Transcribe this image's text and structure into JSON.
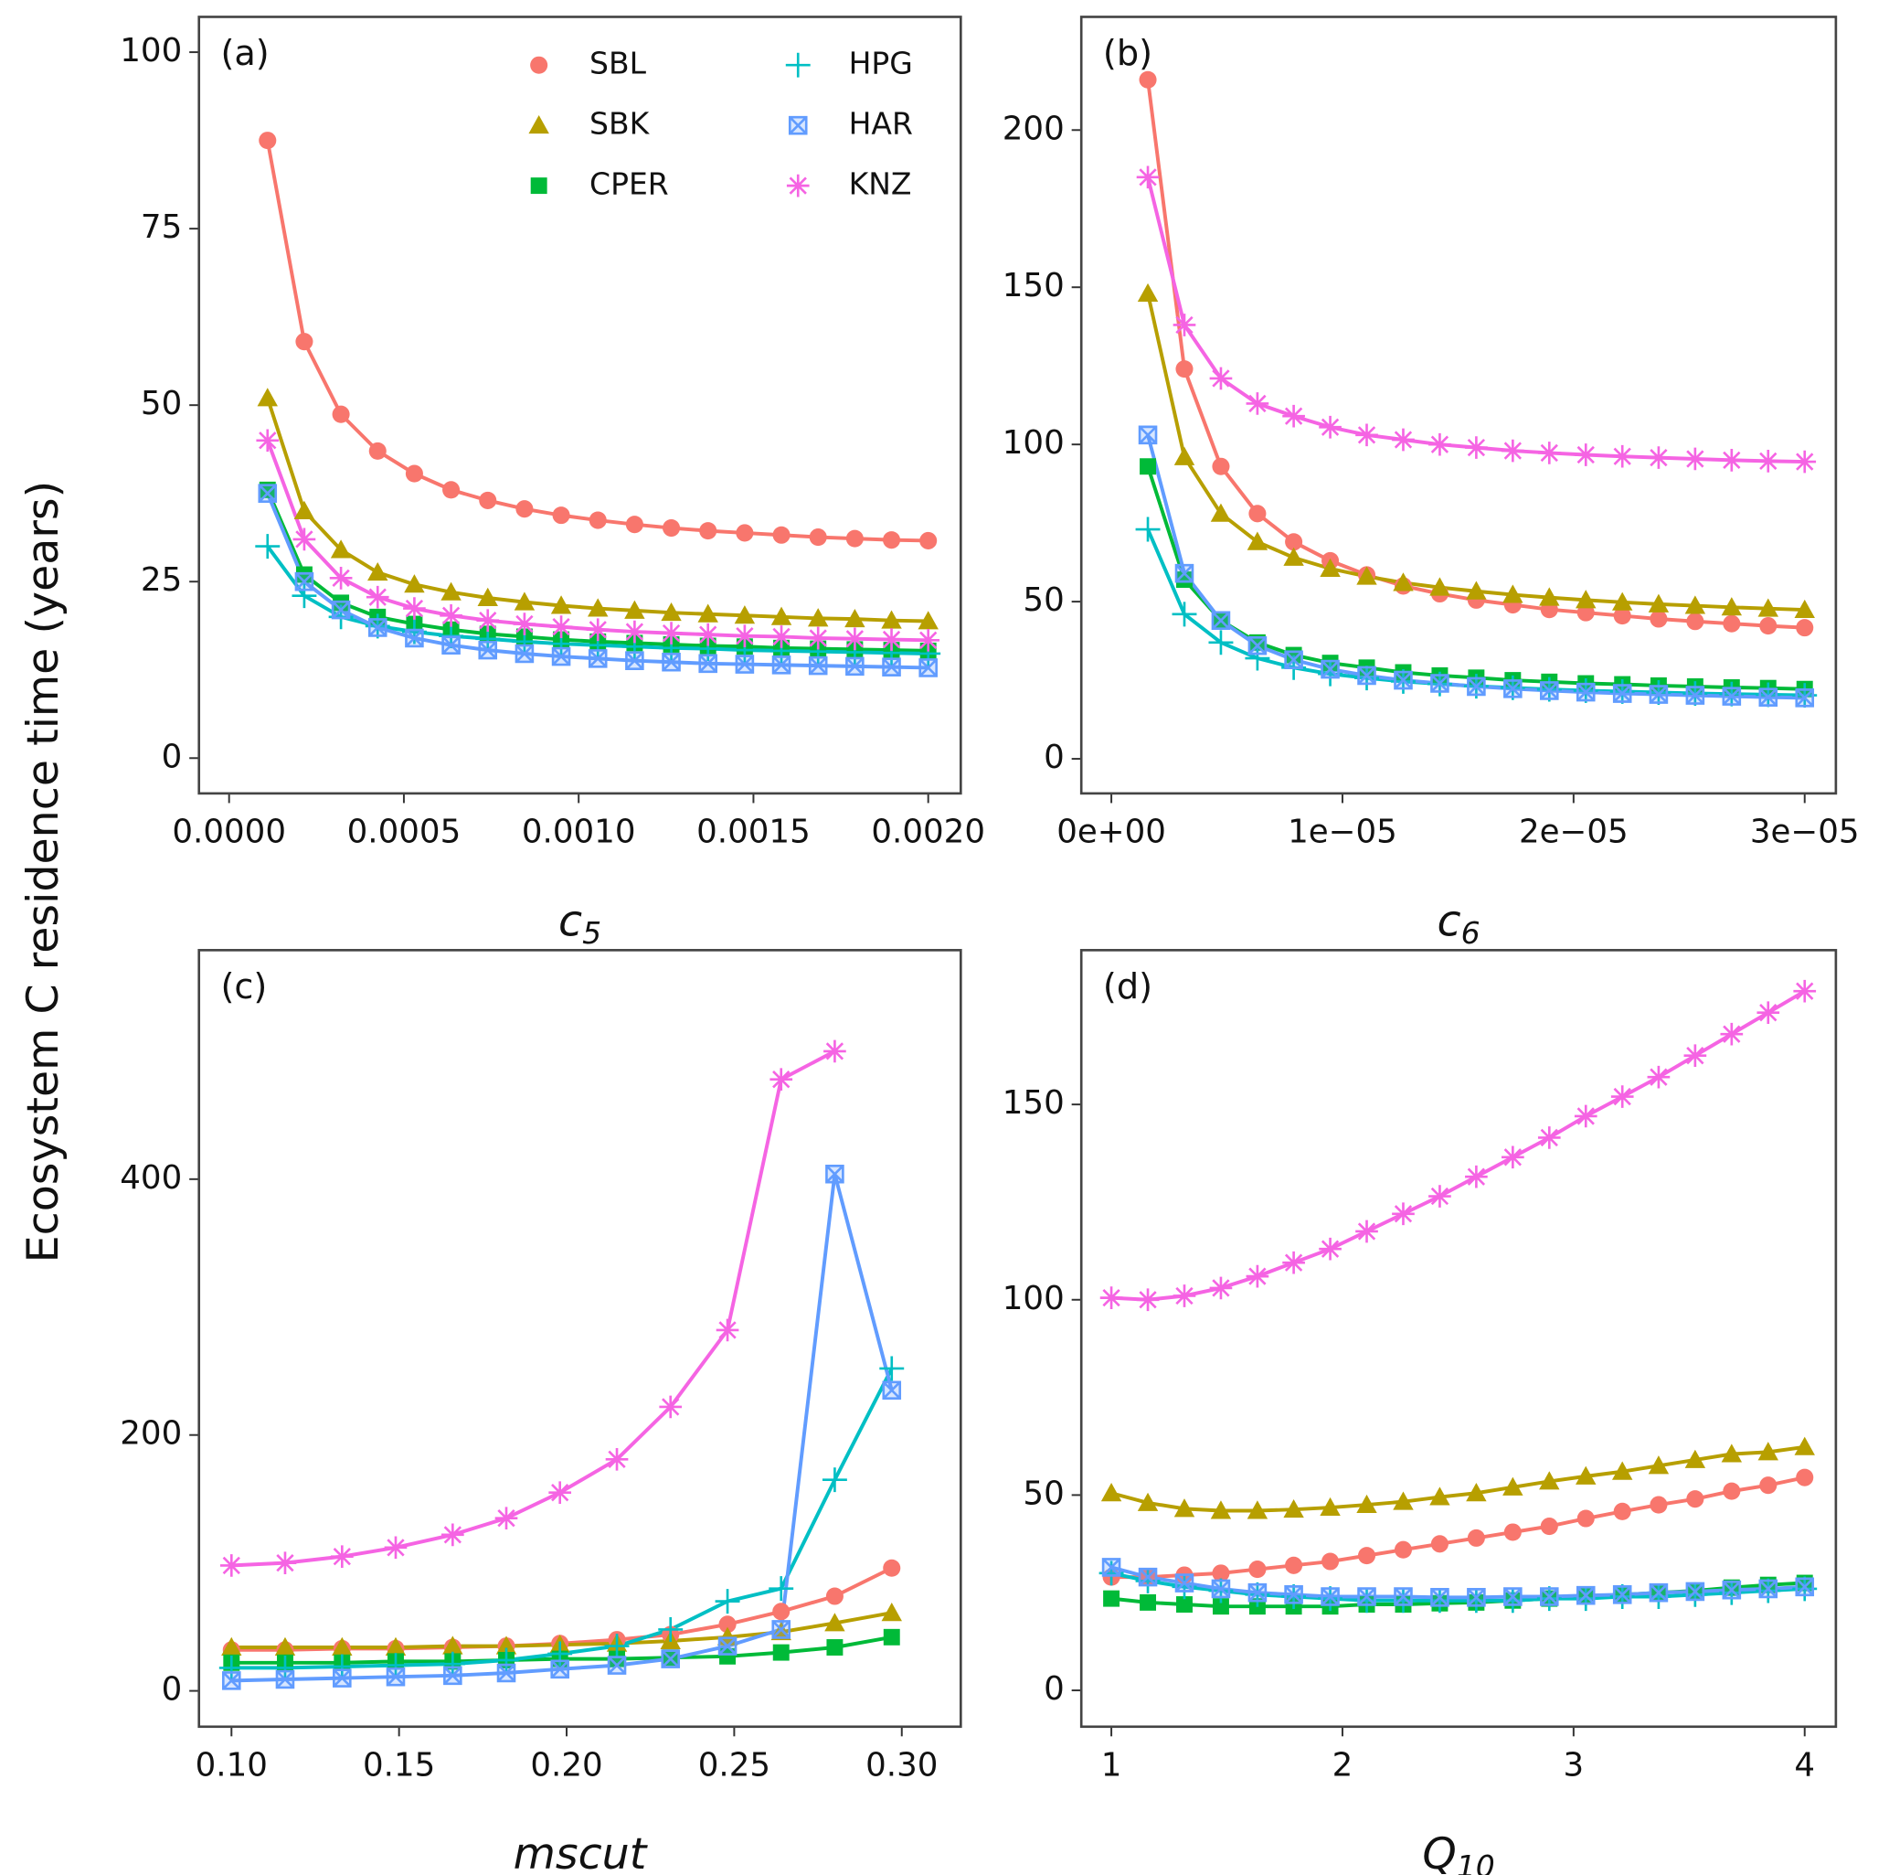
{
  "ylabel": "Ecosystem C residence time (years)",
  "chart_data": [
    {
      "type": "line",
      "title": "(a)",
      "xlabel": {
        "text": "c",
        "sub": "5"
      },
      "legend": "upper right",
      "xlim": [
        -8.62e-05,
        0.0020931
      ],
      "ylim": [
        -5,
        105
      ],
      "xticks": [
        {
          "value": 0,
          "label": "0.0000"
        },
        {
          "value": 0.0005,
          "label": "0.0005"
        },
        {
          "value": 0.001,
          "label": "0.0010"
        },
        {
          "value": 0.0015,
          "label": "0.0015"
        },
        {
          "value": 0.002,
          "label": "0.0020"
        }
      ],
      "yticks": [
        0,
        25,
        50,
        75,
        100
      ],
      "x": [
        0.00011,
        0.000215,
        0.00032,
        0.000425,
        0.00053,
        0.000635,
        0.00074,
        0.000845,
        0.00095,
        0.001055,
        0.00116,
        0.001265,
        0.00137,
        0.001475,
        0.00158,
        0.001685,
        0.00179,
        0.001895,
        0.002
      ],
      "series": [
        {
          "name": "SBL",
          "color": "#f8766d",
          "marker": "circle",
          "values": [
            87.5,
            59,
            48.7,
            43.5,
            40.3,
            38,
            36.5,
            35.3,
            34.4,
            33.7,
            33.1,
            32.6,
            32.2,
            31.9,
            31.6,
            31.3,
            31.1,
            30.9,
            30.8
          ]
        },
        {
          "name": "SBK",
          "color": "#b79f00",
          "marker": "triangle",
          "values": [
            51,
            35,
            29.5,
            26.3,
            24.6,
            23.5,
            22.7,
            22.1,
            21.6,
            21.2,
            20.9,
            20.6,
            20.4,
            20.2,
            20.0,
            19.8,
            19.7,
            19.5,
            19.4
          ]
        },
        {
          "name": "CPER",
          "color": "#00ba38",
          "marker": "square",
          "values": [
            38,
            26,
            22,
            20,
            19,
            18.2,
            17.6,
            17.2,
            16.8,
            16.5,
            16.3,
            16.1,
            15.9,
            15.8,
            15.6,
            15.5,
            15.4,
            15.3,
            15.2
          ]
        },
        {
          "name": "HPG",
          "color": "#00bfc4",
          "marker": "plus",
          "values": [
            30,
            23,
            20,
            18.7,
            17.9,
            17.3,
            16.9,
            16.5,
            16.2,
            16.0,
            15.8,
            15.6,
            15.5,
            15.3,
            15.2,
            15.1,
            15.0,
            14.9,
            14.8
          ]
        },
        {
          "name": "HAR",
          "color": "#619cff",
          "marker": "boxx",
          "values": [
            37.5,
            25,
            21,
            18.5,
            17,
            16,
            15.3,
            14.8,
            14.4,
            14.1,
            13.8,
            13.6,
            13.4,
            13.3,
            13.2,
            13.1,
            13.0,
            12.9,
            12.8
          ]
        },
        {
          "name": "KNZ",
          "color": "#f564e3",
          "marker": "star",
          "values": [
            45,
            31,
            25.5,
            22.8,
            21.2,
            20.2,
            19.5,
            19,
            18.6,
            18.2,
            17.9,
            17.7,
            17.5,
            17.3,
            17.2,
            17.0,
            16.9,
            16.8,
            16.7
          ]
        }
      ]
    },
    {
      "type": "line",
      "title": "(b)",
      "xlabel": {
        "text": "c",
        "sub": "6"
      },
      "xlim": [
        -1.3e-06,
        3.135e-05
      ],
      "ylim": [
        -11,
        236
      ],
      "xticks": [
        {
          "value": 0,
          "label": "0e+00"
        },
        {
          "value": 1e-05,
          "label": "1e−05"
        },
        {
          "value": 2e-05,
          "label": "2e−05"
        },
        {
          "value": 3e-05,
          "label": "3e−05"
        }
      ],
      "yticks": [
        0,
        50,
        100,
        150,
        200
      ],
      "x": [
        1.58e-06,
        3.16e-06,
        4.74e-06,
        6.32e-06,
        7.89e-06,
        9.47e-06,
        1.105e-05,
        1.263e-05,
        1.421e-05,
        1.579e-05,
        1.737e-05,
        1.895e-05,
        2.053e-05,
        2.211e-05,
        2.368e-05,
        2.526e-05,
        2.684e-05,
        2.842e-05,
        3e-05
      ],
      "series": [
        {
          "color": "#f8766d",
          "marker": "circle",
          "values": [
            216,
            124,
            93,
            78,
            69,
            63,
            58.5,
            55,
            52.5,
            50.5,
            49,
            47.5,
            46.5,
            45.5,
            44.5,
            43.7,
            43,
            42.3,
            41.7
          ]
        },
        {
          "color": "#b79f00",
          "marker": "triangle",
          "values": [
            148,
            96,
            78,
            69,
            64,
            60.5,
            58,
            56,
            54.5,
            53.3,
            52.2,
            51.3,
            50.5,
            49.8,
            49.2,
            48.7,
            48.2,
            47.8,
            47.4
          ]
        },
        {
          "color": "#00ba38",
          "marker": "square",
          "values": [
            93,
            57,
            44,
            37,
            33,
            30.5,
            29,
            27.5,
            26.5,
            25.8,
            25,
            24.5,
            24,
            23.7,
            23.3,
            23,
            22.7,
            22.5,
            22.2
          ]
        },
        {
          "color": "#00bfc4",
          "marker": "plus",
          "values": [
            73,
            46,
            37,
            32,
            29,
            27,
            25.7,
            24.6,
            23.8,
            23.1,
            22.6,
            22.1,
            21.7,
            21.4,
            21.1,
            20.8,
            20.6,
            20.4,
            20.2
          ]
        },
        {
          "color": "#619cff",
          "marker": "boxx",
          "values": [
            103,
            59,
            44,
            36,
            31.5,
            28.5,
            26.5,
            25,
            24,
            23,
            22.3,
            21.7,
            21.2,
            20.8,
            20.5,
            20.2,
            19.9,
            19.6,
            19.4
          ]
        },
        {
          "color": "#f564e3",
          "marker": "star",
          "values": [
            185,
            138,
            121,
            113,
            109,
            105.5,
            103,
            101.5,
            100,
            99,
            98,
            97.3,
            96.7,
            96.2,
            95.8,
            95.4,
            95,
            94.7,
            94.5
          ]
        }
      ]
    },
    {
      "type": "line",
      "title": "(c)",
      "xlabel": {
        "text": "mscut"
      },
      "xlim": [
        0.0903,
        0.3176
      ],
      "ylim": [
        -28,
        579
      ],
      "xticks": [
        {
          "value": 0.1,
          "label": "0.10"
        },
        {
          "value": 0.15,
          "label": "0.15"
        },
        {
          "value": 0.2,
          "label": "0.20"
        },
        {
          "value": 0.25,
          "label": "0.25"
        },
        {
          "value": 0.3,
          "label": "0.30"
        }
      ],
      "yticks": [
        0,
        200,
        400
      ],
      "x": [
        0.1,
        0.116,
        0.133,
        0.149,
        0.166,
        0.182,
        0.198,
        0.215,
        0.231,
        0.248,
        0.264,
        0.28,
        0.297
      ],
      "series": [
        {
          "color": "#f8766d",
          "marker": "circle",
          "values": [
            32,
            32,
            33,
            33,
            34,
            35,
            37,
            40,
            44,
            52,
            62,
            74,
            96
          ]
        },
        {
          "color": "#b79f00",
          "marker": "triangle",
          "values": [
            34,
            34,
            34,
            34,
            35,
            35,
            36,
            37,
            39,
            42,
            46,
            53,
            61
          ]
        },
        {
          "color": "#00ba38",
          "marker": "square",
          "values": [
            22,
            22,
            22,
            23,
            23,
            24,
            25,
            25,
            26,
            27,
            30,
            34,
            42
          ]
        },
        {
          "color": "#00bfc4",
          "marker": "plus",
          "values": [
            18,
            18,
            19,
            20,
            21,
            24,
            29,
            35,
            48,
            70,
            80,
            165,
            252
          ]
        },
        {
          "color": "#619cff",
          "marker": "boxx",
          "values": [
            8,
            9,
            10,
            11,
            12,
            14,
            17,
            20,
            25,
            35,
            48,
            404,
            235
          ]
        },
        {
          "color": "#f564e3",
          "marker": "star",
          "values": [
            98,
            100,
            105,
            112,
            122,
            135,
            155,
            181,
            222,
            282,
            478,
            500,
            null
          ]
        }
      ]
    },
    {
      "type": "line",
      "title": "(d)",
      "xlabel": {
        "text": "Q",
        "sub": "10"
      },
      "xlim": [
        0.87,
        4.135
      ],
      "ylim": [
        -9.3,
        189.5
      ],
      "xticks": [
        1,
        2,
        3,
        4
      ],
      "yticks": [
        0,
        50,
        100,
        150
      ],
      "x": [
        1,
        1.158,
        1.316,
        1.474,
        1.632,
        1.789,
        1.947,
        2.105,
        2.263,
        2.421,
        2.579,
        2.737,
        2.895,
        3.053,
        3.211,
        3.368,
        3.526,
        3.684,
        3.842,
        4
      ],
      "series": [
        {
          "color": "#f8766d",
          "marker": "circle",
          "values": [
            29,
            29,
            29.5,
            30,
            31,
            32,
            33,
            34.5,
            36,
            37.5,
            39,
            40.5,
            42,
            44,
            45.8,
            47.5,
            49,
            51,
            52.5,
            54.5
          ]
        },
        {
          "color": "#b79f00",
          "marker": "triangle",
          "values": [
            50.5,
            48,
            46.5,
            46,
            46,
            46.3,
            46.8,
            47.5,
            48.3,
            49.5,
            50.5,
            52,
            53.5,
            54.8,
            56,
            57.5,
            59,
            60.5,
            61,
            62.3
          ]
        },
        {
          "color": "#00ba38",
          "marker": "square",
          "values": [
            23.5,
            22.5,
            22,
            21.5,
            21.5,
            21.5,
            21.5,
            22,
            22,
            22.3,
            22.5,
            23,
            23.5,
            24,
            24.5,
            25,
            25.5,
            26.3,
            27,
            27.5
          ]
        },
        {
          "color": "#00bfc4",
          "marker": "plus",
          "values": [
            30,
            28,
            26.5,
            25.5,
            24.5,
            24,
            23.5,
            23,
            23,
            23,
            23,
            23,
            23.5,
            23.5,
            24,
            24,
            24.5,
            25,
            25.5,
            26
          ]
        },
        {
          "color": "#619cff",
          "marker": "boxx",
          "values": [
            31.5,
            29,
            27.5,
            26,
            25,
            24.5,
            24,
            24,
            24,
            23.8,
            23.8,
            24,
            24,
            24.3,
            24.5,
            25,
            25.3,
            25.7,
            26,
            26.5
          ]
        },
        {
          "color": "#f564e3",
          "marker": "star",
          "values": [
            100.5,
            100,
            101,
            103,
            106,
            109.5,
            113,
            117.5,
            122,
            126.5,
            131.5,
            136.5,
            141.5,
            147,
            152,
            157,
            162.5,
            168,
            173.5,
            179
          ]
        }
      ]
    }
  ]
}
